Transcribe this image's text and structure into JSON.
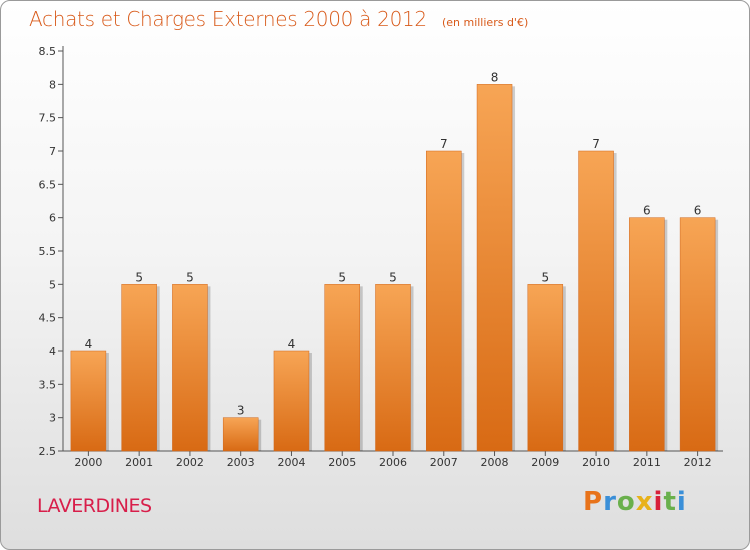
{
  "title": "Achats et Charges Externes 2000 à 2012",
  "subtitle": "(en milliers d'€)",
  "commune": "LAVERDINES",
  "brand": {
    "letters": [
      "P",
      "r",
      "o",
      "x",
      "i",
      "t",
      "i"
    ],
    "colors": [
      "#e8731a",
      "#3a8fd8",
      "#6ab04c",
      "#e8b21a",
      "#d8203a",
      "#6ab04c",
      "#3a8fd8"
    ]
  },
  "colors": {
    "title": "#d85a1a",
    "commune": "#d81e4a",
    "bar_top": "#f7a555",
    "bar_bottom": "#d86a14"
  },
  "chart_data": {
    "type": "bar",
    "categories": [
      "2000",
      "2001",
      "2002",
      "2003",
      "2004",
      "2005",
      "2006",
      "2007",
      "2008",
      "2009",
      "2010",
      "2011",
      "2012"
    ],
    "values": [
      4,
      5,
      5,
      3,
      4,
      5,
      5,
      7,
      8,
      5,
      7,
      6,
      6
    ],
    "data_labels": [
      "4",
      "5",
      "5",
      "3",
      "4",
      "5",
      "5",
      "7",
      "8",
      "5",
      "7",
      "6",
      "6"
    ],
    "title": "Achats et Charges Externes 2000 à 2012",
    "subtitle": "(en milliers d'€)",
    "xlabel": "",
    "ylabel": "",
    "ylim": [
      2.5,
      8.5
    ],
    "yticks": [
      "2.5",
      "3",
      "3.5",
      "4",
      "4.5",
      "5",
      "5.5",
      "6",
      "6.5",
      "7",
      "7.5",
      "8",
      "8.5"
    ],
    "grid": false,
    "legend": "none"
  }
}
